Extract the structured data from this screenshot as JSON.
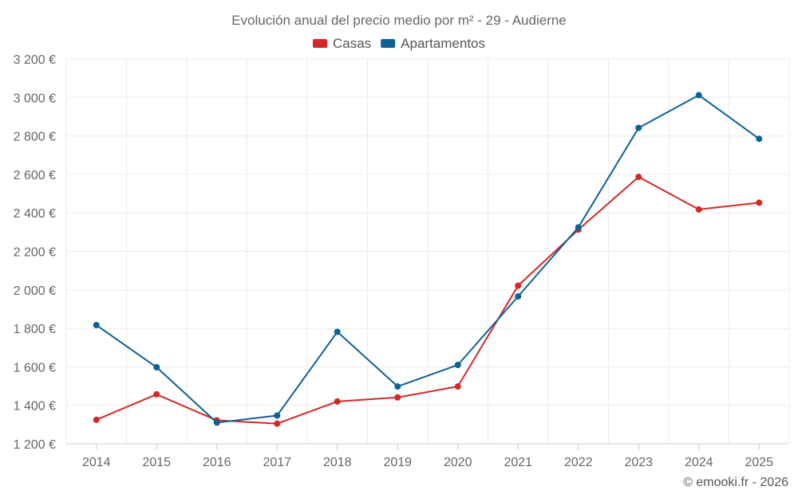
{
  "chart_data": {
    "type": "line",
    "title": "Evolución anual del precio medio por m² - 29 - Audierne",
    "xlabel": "",
    "ylabel": "",
    "categories": [
      "2014",
      "2015",
      "2016",
      "2017",
      "2018",
      "2019",
      "2020",
      "2021",
      "2022",
      "2023",
      "2024",
      "2025"
    ],
    "ylim": [
      1200,
      3200
    ],
    "yticks": [
      1200,
      1400,
      1600,
      1800,
      2000,
      2200,
      2400,
      2600,
      2800,
      3000,
      3200
    ],
    "ytick_labels": [
      "1 200 €",
      "1 400 €",
      "1 600 €",
      "1 800 €",
      "2 000 €",
      "2 200 €",
      "2 400 €",
      "2 600 €",
      "2 800 €",
      "3 000 €",
      "3 200 €"
    ],
    "grid": true,
    "legend_position": "top-center",
    "series": [
      {
        "name": "Casas",
        "color": "#d62728",
        "values": [
          1325,
          1457,
          1322,
          1305,
          1420,
          1441,
          1498,
          2022,
          2313,
          2587,
          2418,
          2453
        ]
      },
      {
        "name": "Apartamentos",
        "color": "#0e6195",
        "values": [
          1817,
          1598,
          1310,
          1347,
          1782,
          1498,
          1610,
          1966,
          2325,
          2842,
          3012,
          2785
        ]
      }
    ],
    "credit": "© emooki.fr - 2026"
  }
}
